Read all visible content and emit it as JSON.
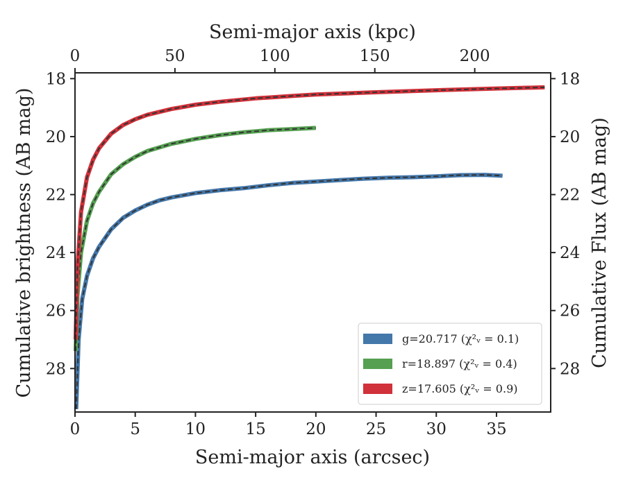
{
  "chart_data": {
    "type": "line",
    "xlabel": "Semi-major axis (arcsec)",
    "ylabel": "Cumulative brightness (AB mag)",
    "x2label": "Semi-major axis (kpc)",
    "y2label": "Cumulative Flux (AB mag)",
    "xlim": [
      0,
      39.5
    ],
    "ylim": [
      29.5,
      17.8
    ],
    "y_inverted": true,
    "x2lim": [
      0,
      238
    ],
    "x_ticks": [
      0,
      5,
      10,
      15,
      20,
      25,
      30,
      35
    ],
    "x_tick_labels": [
      "0",
      "5",
      "10",
      "15",
      "20",
      "25",
      "30",
      "35"
    ],
    "y_ticks": [
      18,
      20,
      22,
      24,
      26,
      28
    ],
    "y_tick_labels": [
      "18",
      "20",
      "22",
      "24",
      "26",
      "28"
    ],
    "x2_ticks": [
      0,
      50,
      100,
      150,
      200
    ],
    "x2_tick_labels": [
      "0",
      "50",
      "100",
      "150",
      "200"
    ],
    "grid": false,
    "legend_position": "lower-right",
    "legend_entries": [
      {
        "band": "g",
        "text": "g=20.717",
        "chi2": "(χ²ᵥ = 0.1)"
      },
      {
        "band": "r",
        "text": "r=18.897",
        "chi2": "(χ²ᵥ = 0.4)"
      },
      {
        "band": "z",
        "text": "z=17.605",
        "chi2": "(χ²ᵥ = 0.9)"
      }
    ],
    "series": [
      {
        "name": "g=20.717 (χ²ᵥ = 0.1)",
        "color": "#4477aa",
        "x": [
          0.1,
          0.3,
          0.6,
          1.0,
          1.5,
          2.0,
          3.0,
          4.0,
          5.0,
          6.0,
          7.0,
          8.0,
          10.0,
          12.0,
          14.0,
          16.0,
          18.0,
          20.0,
          22.0,
          24.0,
          26.0,
          28.0,
          30.0,
          32.0,
          34.0,
          35.5
        ],
        "y": [
          29.4,
          27.0,
          25.6,
          24.8,
          24.2,
          23.8,
          23.2,
          22.8,
          22.55,
          22.35,
          22.2,
          22.1,
          21.95,
          21.85,
          21.78,
          21.68,
          21.6,
          21.55,
          21.5,
          21.45,
          21.42,
          21.4,
          21.37,
          21.33,
          21.32,
          21.35
        ]
      },
      {
        "name": "r=18.897 (χ²ᵥ = 0.4)",
        "color": "#55a051",
        "x": [
          0.05,
          0.2,
          0.5,
          1.0,
          1.5,
          2.0,
          3.0,
          4.0,
          5.0,
          6.0,
          8.0,
          10.0,
          12.0,
          14.0,
          16.0,
          18.0,
          20.0
        ],
        "y": [
          27.4,
          25.5,
          24.0,
          22.9,
          22.3,
          21.9,
          21.3,
          20.95,
          20.7,
          20.5,
          20.25,
          20.08,
          19.95,
          19.85,
          19.78,
          19.74,
          19.7
        ]
      },
      {
        "name": "z=17.605 (χ²ᵥ = 0.9)",
        "color": "#d1313a",
        "x": [
          0.05,
          0.2,
          0.5,
          1.0,
          1.5,
          2.0,
          3.0,
          4.0,
          5.0,
          6.0,
          8.0,
          10.0,
          12.0,
          15.0,
          18.0,
          20.0,
          25.0,
          30.0,
          35.0,
          39.0
        ],
        "y": [
          27.0,
          24.5,
          22.6,
          21.4,
          20.8,
          20.4,
          19.9,
          19.6,
          19.4,
          19.25,
          19.05,
          18.9,
          18.8,
          18.68,
          18.6,
          18.55,
          18.47,
          18.4,
          18.34,
          18.3
        ]
      }
    ]
  }
}
